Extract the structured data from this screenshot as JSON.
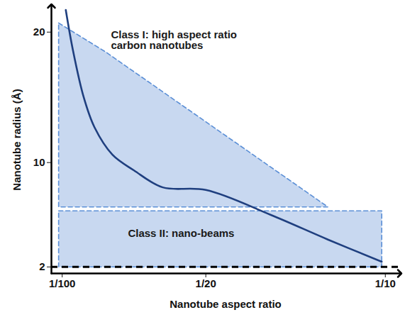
{
  "chart_data": {
    "type": "line",
    "x_label": "Nanotube aspect ratio",
    "y_label": "Nanotube radius (Å)",
    "xlim": [
      0.007,
      0.104
    ],
    "ylim": [
      1.5,
      22
    ],
    "xticks": [
      {
        "value": 0.01,
        "label": "1/100"
      },
      {
        "value": 0.05,
        "label": "1/20"
      },
      {
        "value": 0.1,
        "label": "1/10"
      }
    ],
    "yticks": [
      2,
      10,
      20
    ],
    "curve": {
      "x": [
        0.011,
        0.013,
        0.016,
        0.019,
        0.024,
        0.03,
        0.038,
        0.05,
        0.068,
        0.084,
        0.099
      ],
      "values": [
        21.7,
        18.6,
        15.0,
        12.7,
        10.6,
        9.4,
        8.1,
        7.9,
        6.0,
        4.1,
        2.4
      ],
      "color": "#1f3f7f",
      "line_style": "solid"
    },
    "baseline": {
      "y": 2,
      "color": "#000000",
      "line_style": "dashed"
    },
    "regions": [
      {
        "name": "Class I: high aspect ratio\ncarbon nanotubes",
        "x": [
          0.009,
          0.022,
          0.084,
          0.009
        ],
        "y": [
          20.7,
          18.5,
          6.6,
          6.6
        ],
        "color": "#c8d8f0"
      },
      {
        "name": "Class II: nano-beams",
        "x": [
          0.009,
          0.099,
          0.099,
          0.009
        ],
        "y": [
          6.3,
          6.3,
          2,
          2
        ],
        "color": "#c8d8f0"
      }
    ]
  }
}
